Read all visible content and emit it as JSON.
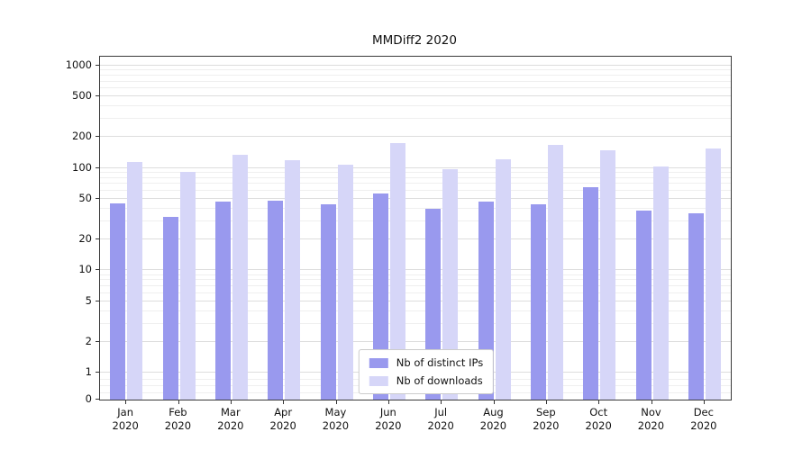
{
  "chart_data": {
    "type": "bar",
    "title": "MMDiff2 2020",
    "categories": [
      "Jan 2020",
      "Feb 2020",
      "Mar 2020",
      "Apr 2020",
      "May 2020",
      "Jun 2020",
      "Jul 2020",
      "Aug 2020",
      "Sep 2020",
      "Oct 2020",
      "Nov 2020",
      "Dec 2020"
    ],
    "series": [
      {
        "name": "Nb of distinct IPs",
        "color": "#9999ee",
        "values": [
          45,
          33,
          47,
          48,
          44,
          56,
          40,
          47,
          44,
          65,
          38,
          36
        ]
      },
      {
        "name": "Nb of downloads",
        "color": "#d6d6f8",
        "values": [
          115,
          92,
          135,
          118,
          107,
          175,
          97,
          122,
          168,
          150,
          104,
          155
        ]
      }
    ],
    "yscale": "symlog",
    "yticks": [
      0,
      1,
      2,
      5,
      10,
      20,
      50,
      100,
      200,
      500,
      1000
    ],
    "ylim": [
      0,
      1200
    ],
    "grid": "horizontal",
    "legend_position": "lower center"
  }
}
